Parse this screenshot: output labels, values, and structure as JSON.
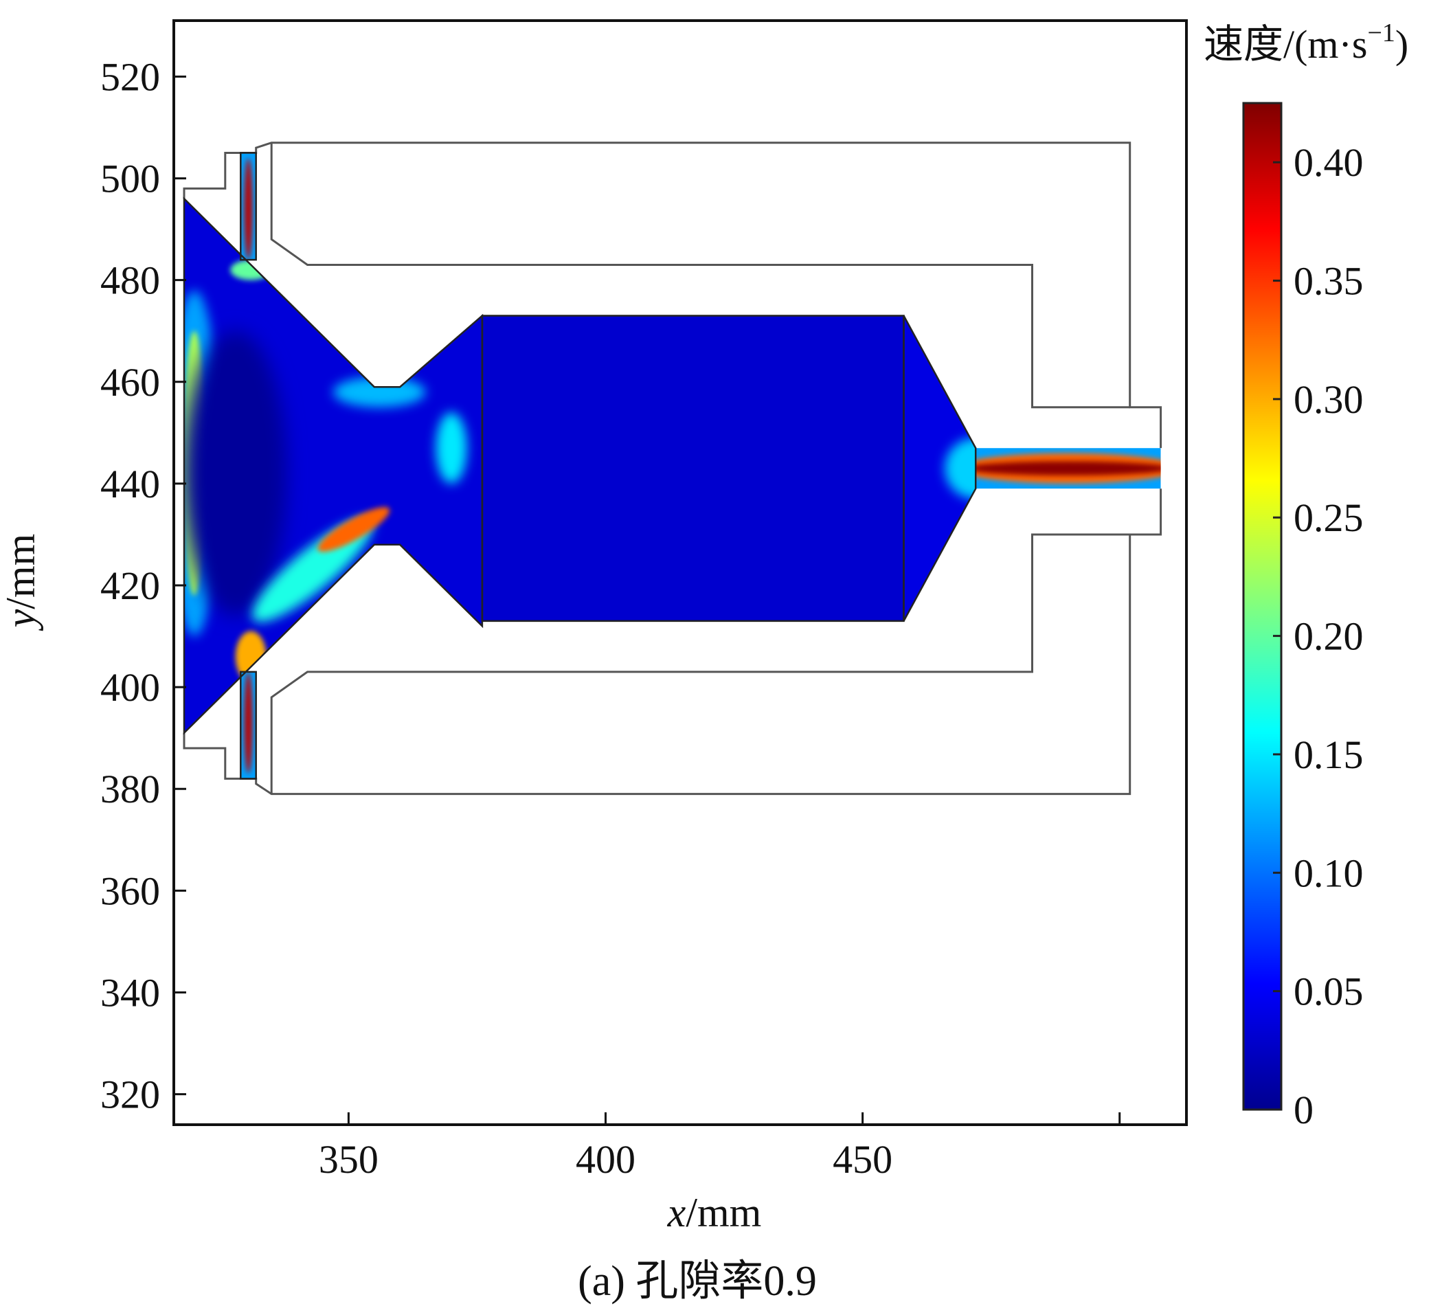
{
  "chart_data": {
    "type": "heatmap",
    "description_type": "velocity contour field",
    "xlabel_var": "x",
    "xlabel_unit": "/mm",
    "ylabel_var": "y",
    "ylabel_unit": "/mm",
    "xlim": [
      316,
      513
    ],
    "ylim": [
      314,
      531
    ],
    "x_ticks": [
      350,
      400,
      450,
      500
    ],
    "x_tick_labels": [
      "350",
      "400",
      "450",
      ""
    ],
    "y_ticks": [
      320,
      340,
      360,
      380,
      400,
      420,
      440,
      460,
      480,
      500,
      520
    ],
    "y_tick_labels": [
      "320",
      "340",
      "360",
      "380",
      "400",
      "420",
      "440",
      "460",
      "480",
      "500",
      "520"
    ],
    "colorbar": {
      "title_main": "速度/(m·s",
      "title_sup": "−1",
      "title_close": ")",
      "min": 0,
      "max": 0.425,
      "ticks": [
        0,
        0.05,
        0.1,
        0.15,
        0.2,
        0.25,
        0.3,
        0.35,
        0.4
      ],
      "tick_labels": [
        "0",
        "0.05",
        "0.10",
        "0.15",
        "0.20",
        "0.25",
        "0.30",
        "0.35",
        "0.40"
      ],
      "colormap": "jet",
      "colors": [
        "#00008f",
        "#0000ff",
        "#0080ff",
        "#00ffff",
        "#80ff80",
        "#ffff00",
        "#ff8000",
        "#ff0000",
        "#800000"
      ]
    },
    "geometry": {
      "inlet_face": [
        [
          318,
          496
        ],
        [
          318,
          391
        ]
      ],
      "inlet_cone": [
        [
          318,
          496
        ],
        [
          355,
          459
        ],
        [
          360,
          459
        ],
        [
          376,
          473
        ],
        [
          376,
          412
        ],
        [
          360,
          428
        ],
        [
          355,
          428
        ],
        [
          318,
          391
        ]
      ],
      "monolith": [
        [
          376,
          473
        ],
        [
          458,
          473
        ],
        [
          458,
          413
        ],
        [
          376,
          413
        ]
      ],
      "outlet_cone": [
        [
          458,
          473
        ],
        [
          472,
          447
        ],
        [
          472,
          439
        ],
        [
          458,
          413
        ]
      ],
      "outlet_pipe": [
        [
          472,
          447
        ],
        [
          508,
          447
        ],
        [
          508,
          439
        ],
        [
          472,
          439
        ]
      ],
      "side_slot_top": [
        [
          329,
          505
        ],
        [
          332,
          505
        ],
        [
          332,
          484
        ],
        [
          329,
          484
        ]
      ],
      "side_slot_bottom": [
        [
          329,
          403
        ],
        [
          332,
          403
        ],
        [
          332,
          382
        ],
        [
          329,
          382
        ]
      ]
    },
    "value_regions": [
      {
        "location": "outlet pipe core",
        "velocity": 0.42
      },
      {
        "location": "upper side slot",
        "velocity": 0.4
      },
      {
        "location": "lower side slot",
        "velocity": 0.4
      },
      {
        "location": "lower inlet cone jet",
        "velocity": 0.33
      },
      {
        "location": "inlet face",
        "velocity": 0.23
      },
      {
        "location": "cone throat",
        "velocity": 0.17
      },
      {
        "location": "monolith",
        "velocity": 0.03
      },
      {
        "location": "inlet cone center",
        "velocity": 0.01
      }
    ]
  },
  "caption": "(a) 孔隙率0.9"
}
